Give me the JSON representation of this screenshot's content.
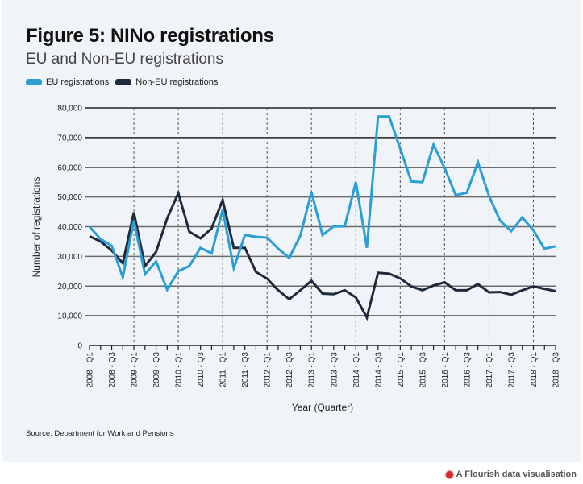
{
  "header": {
    "title": "Figure 5: NINo registrations",
    "subtitle": "EU and Non-EU registrations"
  },
  "legend": [
    {
      "label": "EU registrations",
      "color": "#2a9fd6"
    },
    {
      "label": "Non-EU registrations",
      "color": "#1f2b3a"
    }
  ],
  "footer": {
    "source": "Source: Department for Work and Pensions",
    "credit": "A Flourish data visualisation",
    "credit_icon": "flourish-logo-icon",
    "credit_color": "#d42a2a"
  },
  "chart_data": {
    "type": "line",
    "title": "Figure 5: NINo registrations",
    "subtitle": "EU and Non-EU registrations",
    "xlabel": "Year (Quarter)",
    "ylabel": "Number of registrations",
    "ylim": [
      0,
      80000
    ],
    "yticks": [
      0,
      10000,
      20000,
      30000,
      40000,
      50000,
      60000,
      70000,
      80000
    ],
    "ytick_labels": [
      "0",
      "10,000",
      "20,000",
      "30,000",
      "40,000",
      "50,000",
      "60,000",
      "70,000",
      "80,000"
    ],
    "grid": true,
    "legend_position": "top-left",
    "x": [
      "2008 - Q1",
      "2008 - Q2",
      "2008 - Q3",
      "2008 - Q4",
      "2009 - Q1",
      "2009 - Q2",
      "2009 - Q3",
      "2009 - Q4",
      "2010 - Q1",
      "2010 - Q2",
      "2010 - Q3",
      "2010 - Q4",
      "2011 - Q1",
      "2011 - Q2",
      "2011 - Q3",
      "2011 - Q4",
      "2012 - Q1",
      "2012 - Q2",
      "2012 - Q3",
      "2012 - Q4",
      "2013 - Q1",
      "2013 - Q2",
      "2013 - Q3",
      "2013 - Q4",
      "2014 - Q1",
      "2014 - Q2",
      "2014 - Q3",
      "2014 - Q4",
      "2015 - Q1",
      "2015 - Q2",
      "2015 - Q3",
      "2015 - Q4",
      "2016 - Q1",
      "2016 - Q2",
      "2016 - Q3",
      "2016 - Q4",
      "2017 - Q1",
      "2017 - Q2",
      "2017 - Q3",
      "2017 - Q4",
      "2018 - Q1",
      "2018 - Q2",
      "2018 - Q3"
    ],
    "xtick_labels": [
      "2008 - Q1",
      "2008 - Q3",
      "2009 - Q1",
      "2009 - Q3",
      "2010 - Q1",
      "2010 - Q3",
      "2011 - Q1",
      "2011 - Q3",
      "2012 - Q1",
      "2012 - Q3",
      "2013 - Q1",
      "2013 - Q3",
      "2014 - Q1",
      "2014 - Q3",
      "2015 - Q1",
      "2015 - Q3",
      "2016 - Q1",
      "2016 - Q3",
      "2017 - Q1",
      "2017 - Q3",
      "2018 - Q1",
      "2018 - Q3"
    ],
    "year_markers": [
      "2009 - Q1",
      "2010 - Q1",
      "2011 - Q1",
      "2012 - Q1",
      "2013 - Q1",
      "2014 - Q1",
      "2015 - Q1",
      "2016 - Q1",
      "2017 - Q1",
      "2018 - Q1"
    ],
    "series": [
      {
        "name": "EU registrations",
        "color": "#2a9fd6",
        "values": [
          40000,
          35800,
          33600,
          23000,
          42000,
          24000,
          28300,
          18800,
          25000,
          26800,
          32900,
          31000,
          45800,
          26000,
          37200,
          36600,
          36300,
          32600,
          29500,
          37000,
          51700,
          37200,
          40100,
          40100,
          55000,
          32900,
          77100,
          77100,
          66300,
          55200,
          55000,
          67600,
          59800,
          50600,
          51400,
          61700,
          50400,
          42000,
          38500,
          43100,
          38800,
          32600,
          33400
        ]
      },
      {
        "name": "Non-EU registrations",
        "color": "#1f2b3a",
        "values": [
          36800,
          35000,
          32000,
          27700,
          44800,
          26700,
          31500,
          42800,
          51300,
          38300,
          36100,
          39400,
          49000,
          32900,
          32900,
          24800,
          22500,
          18600,
          15600,
          18600,
          21800,
          17500,
          17300,
          18600,
          16200,
          9400,
          24500,
          24200,
          22600,
          19900,
          18600,
          20200,
          21300,
          18600,
          18600,
          20700,
          17900,
          18000,
          17100,
          18600,
          19900,
          19100,
          18300
        ]
      }
    ]
  }
}
